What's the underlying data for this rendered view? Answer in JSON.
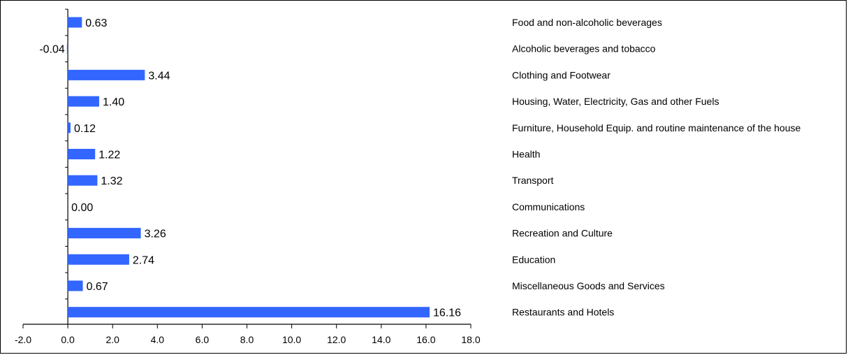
{
  "chart_data": {
    "type": "bar",
    "orientation": "horizontal",
    "title": "",
    "xlabel": "",
    "ylabel": "",
    "xlim": [
      -2.0,
      18.0
    ],
    "x_ticks": [
      "-2.0",
      "0.0",
      "2.0",
      "4.0",
      "6.0",
      "8.0",
      "10.0",
      "12.0",
      "14.0",
      "16.0",
      "18.0"
    ],
    "bar_color": "#3366ff",
    "grid": false,
    "legend": "none",
    "categories": [
      "Food and non-alcoholic beverages",
      "Alcoholic beverages and tobacco",
      "Clothing and Footwear",
      "Housing, Water, Electricity, Gas and other Fuels",
      "Furniture, Household Equip. and routine maintenance of the house",
      "Health",
      "Transport",
      "Communications",
      "Recreation and Culture",
      "Education",
      "Miscellaneous Goods and Services",
      "Restaurants and Hotels"
    ],
    "values": [
      0.63,
      -0.04,
      3.44,
      1.4,
      0.12,
      1.22,
      1.32,
      0.0,
      3.26,
      2.74,
      0.67,
      16.16
    ],
    "value_labels": [
      "0.63",
      "-0.04",
      "3.44",
      "1.40",
      "0.12",
      "1.22",
      "1.32",
      "0.00",
      "3.26",
      "2.74",
      "0.67",
      "16.16"
    ]
  }
}
